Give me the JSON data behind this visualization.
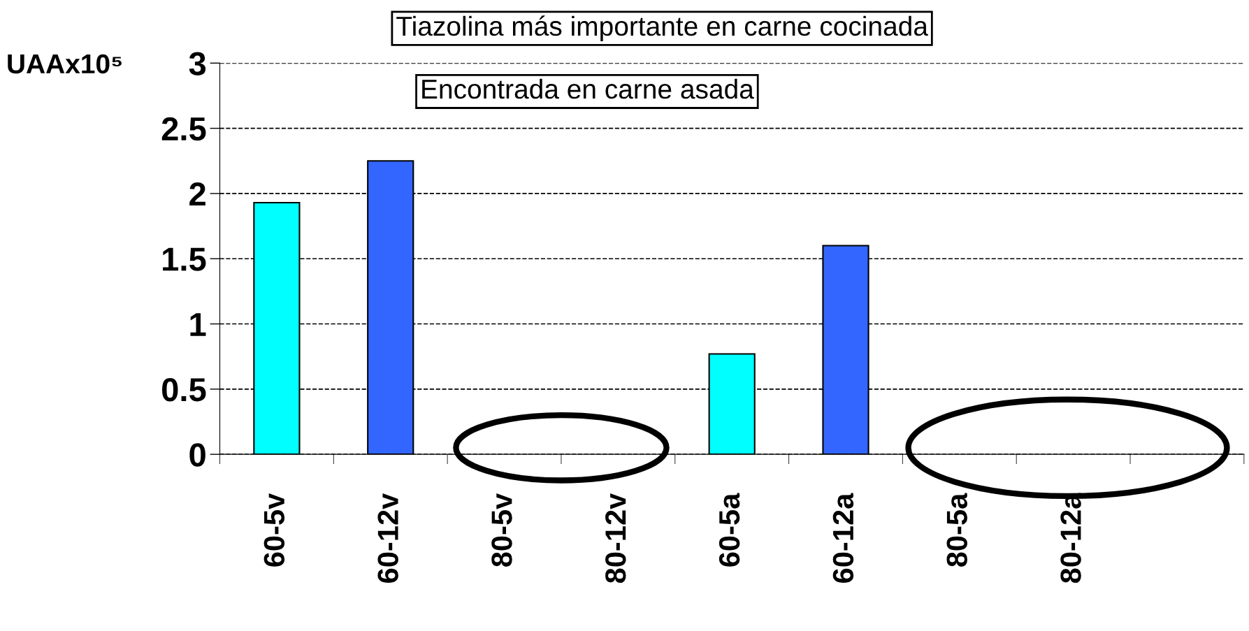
{
  "chart_data": {
    "type": "bar",
    "title": "Tiazolina más importante en carne cocinada",
    "ylabel": "UAAx10⁵",
    "annotations": [
      "Encontrada en carne asada"
    ],
    "categories": [
      "60-5v",
      "60-12v",
      "80-5v",
      "80-12v",
      "60-5a",
      "60-12a",
      "80-5a",
      "80-12a",
      null
    ],
    "values": [
      1.93,
      2.25,
      null,
      null,
      0.77,
      1.6,
      null,
      null,
      null
    ],
    "colors": [
      "#00ffff",
      "#3366ff",
      "#00ffff",
      "#3366ff",
      "#00ffff",
      "#3366ff",
      "#00ffff",
      "#3366ff",
      "#3366ff"
    ],
    "ylim": [
      0,
      3
    ],
    "yticks": [
      0,
      0.5,
      1,
      1.5,
      2,
      2.5,
      3
    ],
    "grid": "y",
    "legend": false
  }
}
